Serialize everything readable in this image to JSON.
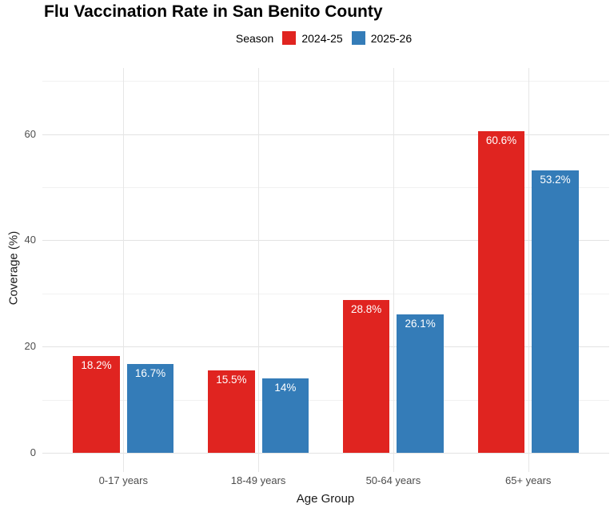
{
  "chart_data": {
    "type": "bar",
    "title": "Flu Vaccination Rate in San Benito County",
    "legend_title": "Season",
    "legend_position": "top",
    "xlabel": "Age Group",
    "ylabel": "Coverage (%)",
    "categories": [
      "0-17 years",
      "18-49 years",
      "50-64 years",
      "65+ years"
    ],
    "series": [
      {
        "name": "2024-25",
        "color": "#e02420",
        "values": [
          18.2,
          15.5,
          28.8,
          60.6
        ],
        "labels": [
          "18.2%",
          "15.5%",
          "28.8%",
          "60.6%"
        ]
      },
      {
        "name": "2025-26",
        "color": "#347cb8",
        "values": [
          16.7,
          14,
          26.1,
          53.2
        ],
        "labels": [
          "16.7%",
          "14%",
          "26.1%",
          "53.2%"
        ]
      }
    ],
    "y_major_ticks": [
      0,
      20,
      40,
      60
    ],
    "y_minor_gridlines": [
      10,
      30,
      50,
      70
    ],
    "ylim": [
      0,
      72.5
    ],
    "grid": "on",
    "background": "#ffffff",
    "bar_label_color": "#ffffff"
  }
}
